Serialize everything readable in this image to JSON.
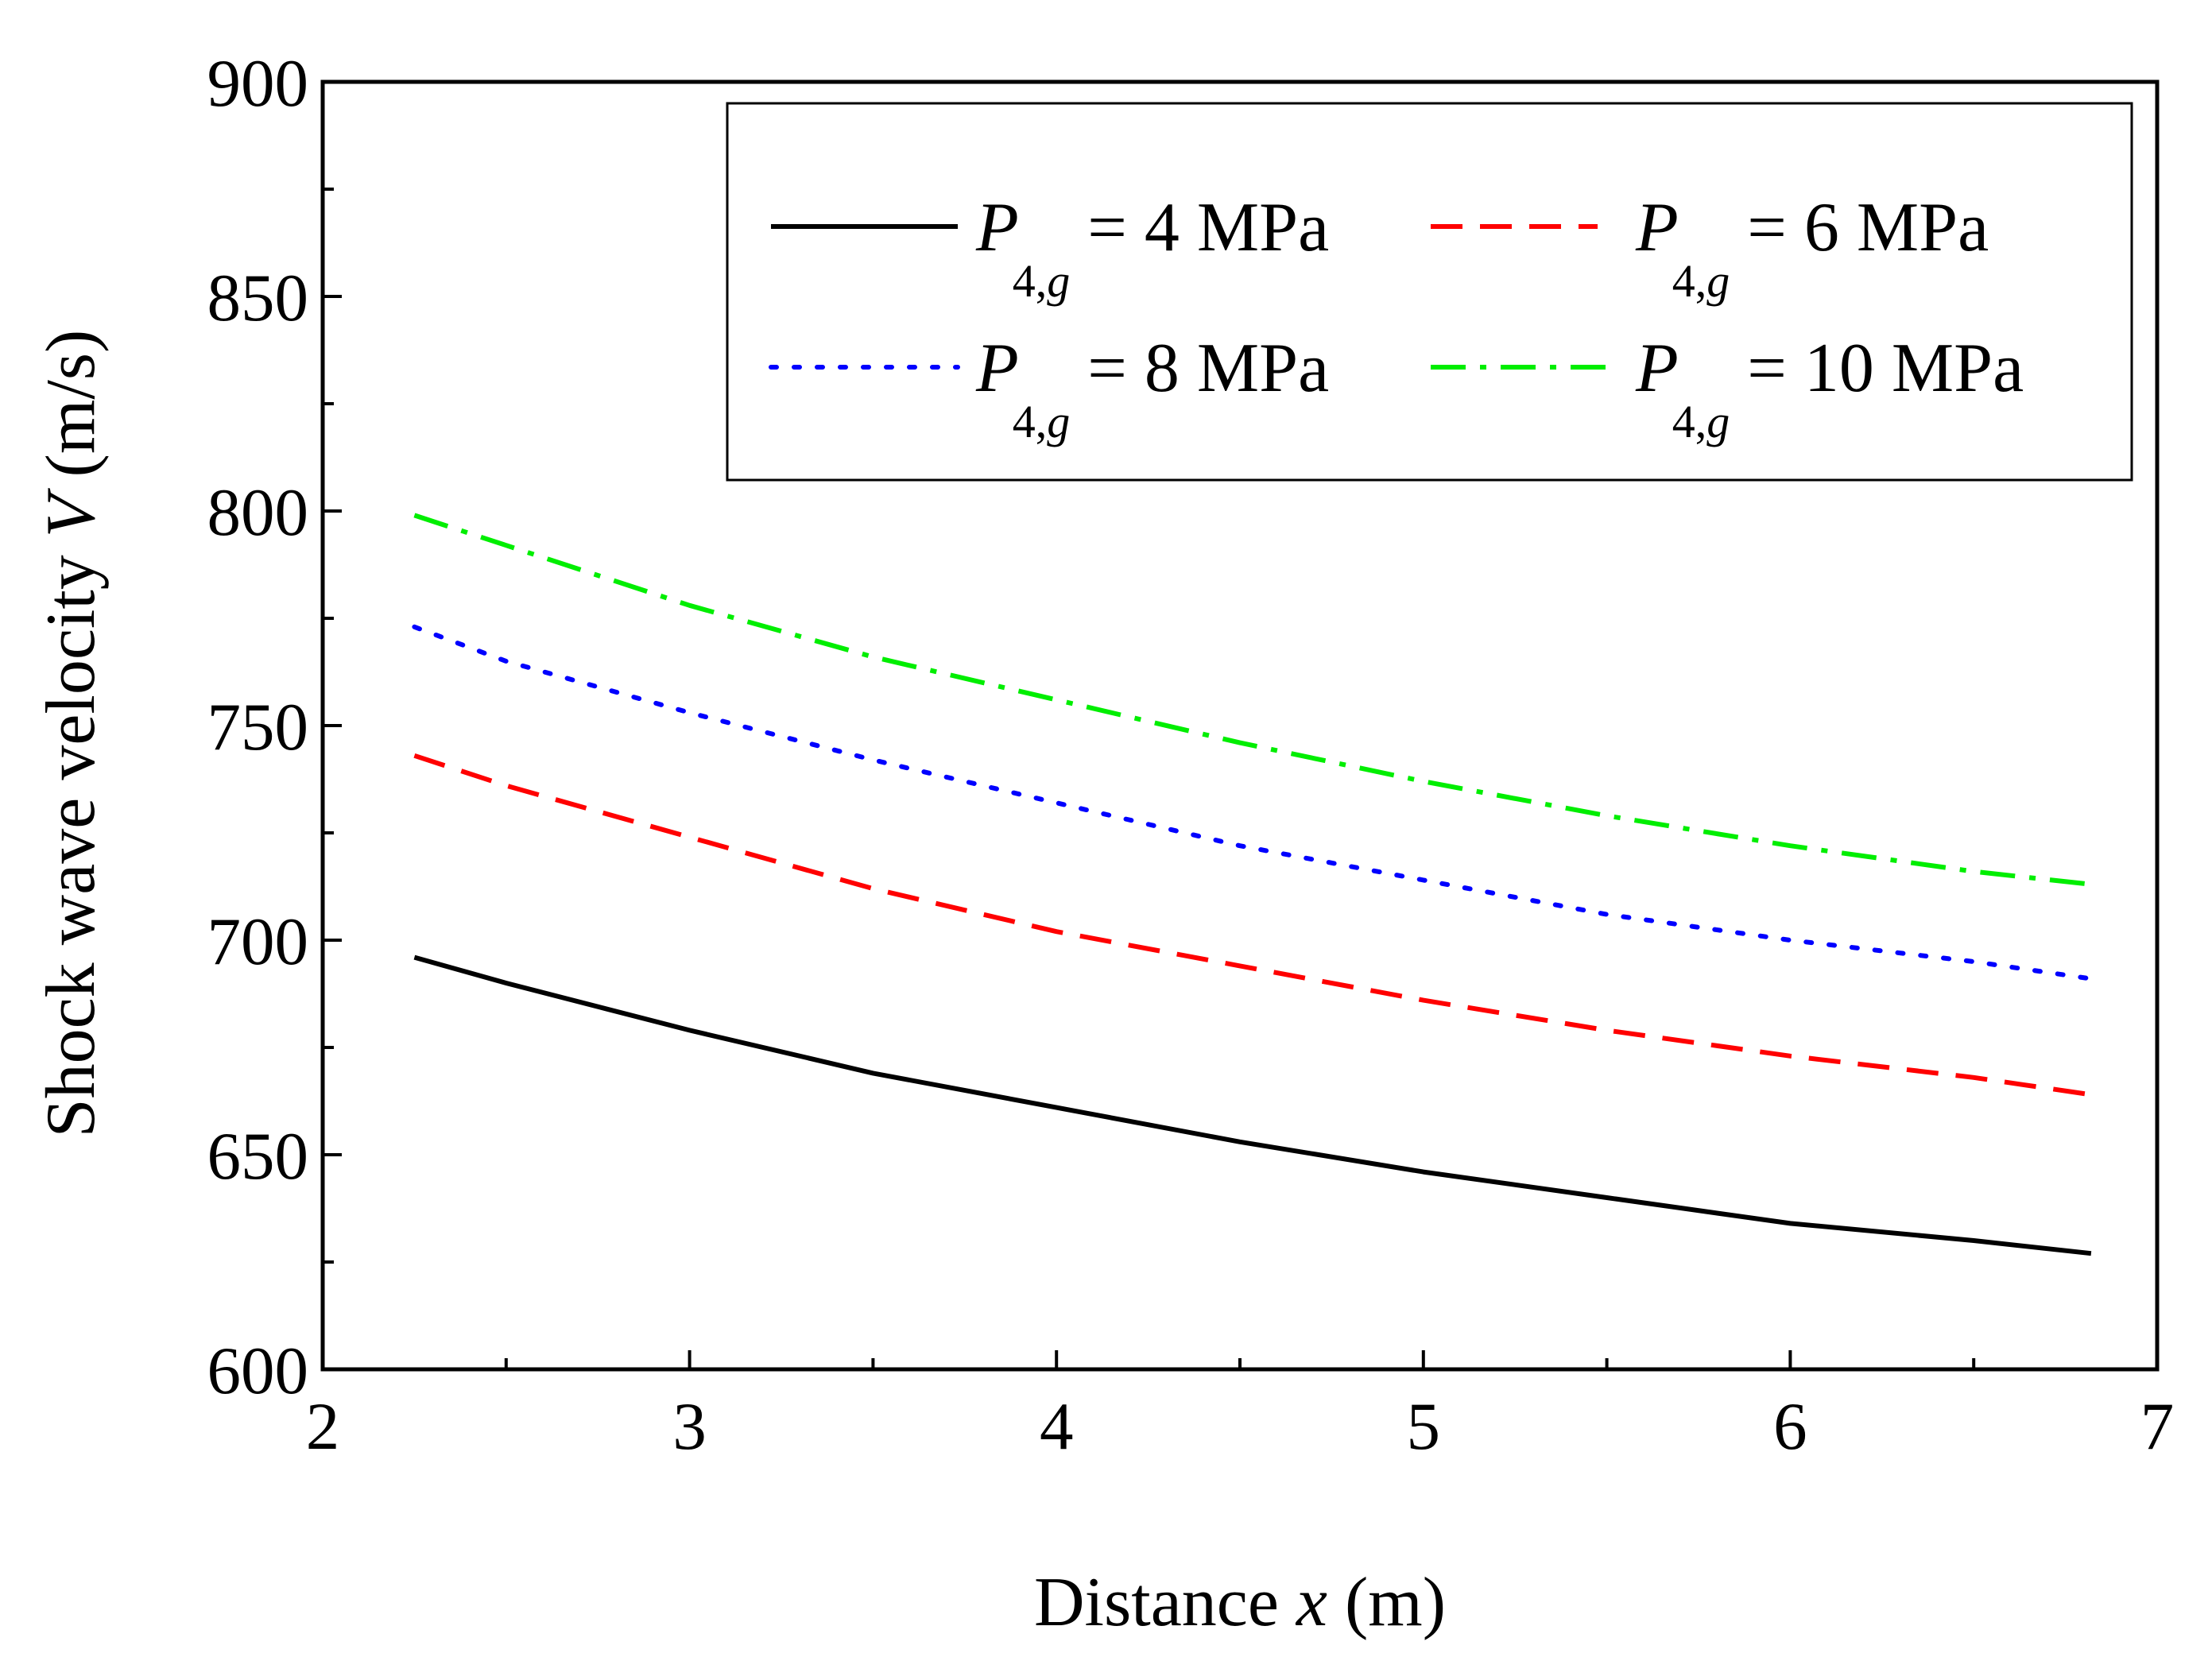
{
  "chart_data": {
    "type": "line",
    "title": "",
    "xlabel": {
      "prefix": "Distance ",
      "var": "x",
      "suffix": " (m)"
    },
    "ylabel": {
      "prefix": "Shock wave velocity ",
      "var": "V",
      "suffix": " (m/s)"
    },
    "xlim": [
      2,
      7
    ],
    "ylim": [
      600,
      900
    ],
    "xticks": [
      2,
      3,
      4,
      5,
      6,
      7
    ],
    "yticks": [
      600,
      650,
      700,
      750,
      800,
      850,
      900
    ],
    "grid": false,
    "legend_position": "top-right",
    "series": [
      {
        "name": "P4,g = 4 MPa",
        "label_main": "P",
        "label_sub": "4,g",
        "label_rest": " = 4 MPa",
        "color": "#000000",
        "style": "solid",
        "x": [
          2.25,
          2.5,
          3.0,
          3.5,
          4.0,
          4.5,
          5.0,
          5.5,
          6.0,
          6.5,
          6.82
        ],
        "values": [
          696,
          690,
          679,
          669,
          661,
          653,
          646,
          640,
          634,
          630,
          627
        ]
      },
      {
        "name": "P4,g = 6 MPa",
        "label_main": "P",
        "label_sub": "4,g",
        "label_rest": " = 6 MPa",
        "color": "#ff0000",
        "style": "dashed",
        "x": [
          2.25,
          2.5,
          3.0,
          3.5,
          4.0,
          4.5,
          5.0,
          5.5,
          6.0,
          6.5,
          6.82
        ],
        "values": [
          743,
          736,
          724,
          712,
          702,
          694,
          686,
          679,
          673,
          668,
          664
        ]
      },
      {
        "name": "P4,g = 8 MPa",
        "label_main": "P",
        "label_sub": "4,g",
        "label_rest": " = 8 MPa",
        "color": "#0000ff",
        "style": "dotted",
        "x": [
          2.25,
          2.5,
          3.0,
          3.5,
          4.0,
          4.5,
          5.0,
          5.5,
          6.0,
          6.5,
          6.82
        ],
        "values": [
          773,
          765,
          753,
          742,
          732,
          722,
          714,
          706,
          700,
          695,
          691
        ]
      },
      {
        "name": "P4,g = 10 MPa",
        "label_main": "P",
        "label_sub": "4,g",
        "label_rest": " = 10 MPa",
        "color": "#00ee00",
        "style": "dashdot",
        "x": [
          2.25,
          2.5,
          3.0,
          3.5,
          4.0,
          4.5,
          5.0,
          5.5,
          6.0,
          6.5,
          6.82
        ],
        "values": [
          799,
          792,
          778,
          766,
          756,
          746,
          737,
          729,
          722,
          716,
          713
        ]
      }
    ]
  }
}
